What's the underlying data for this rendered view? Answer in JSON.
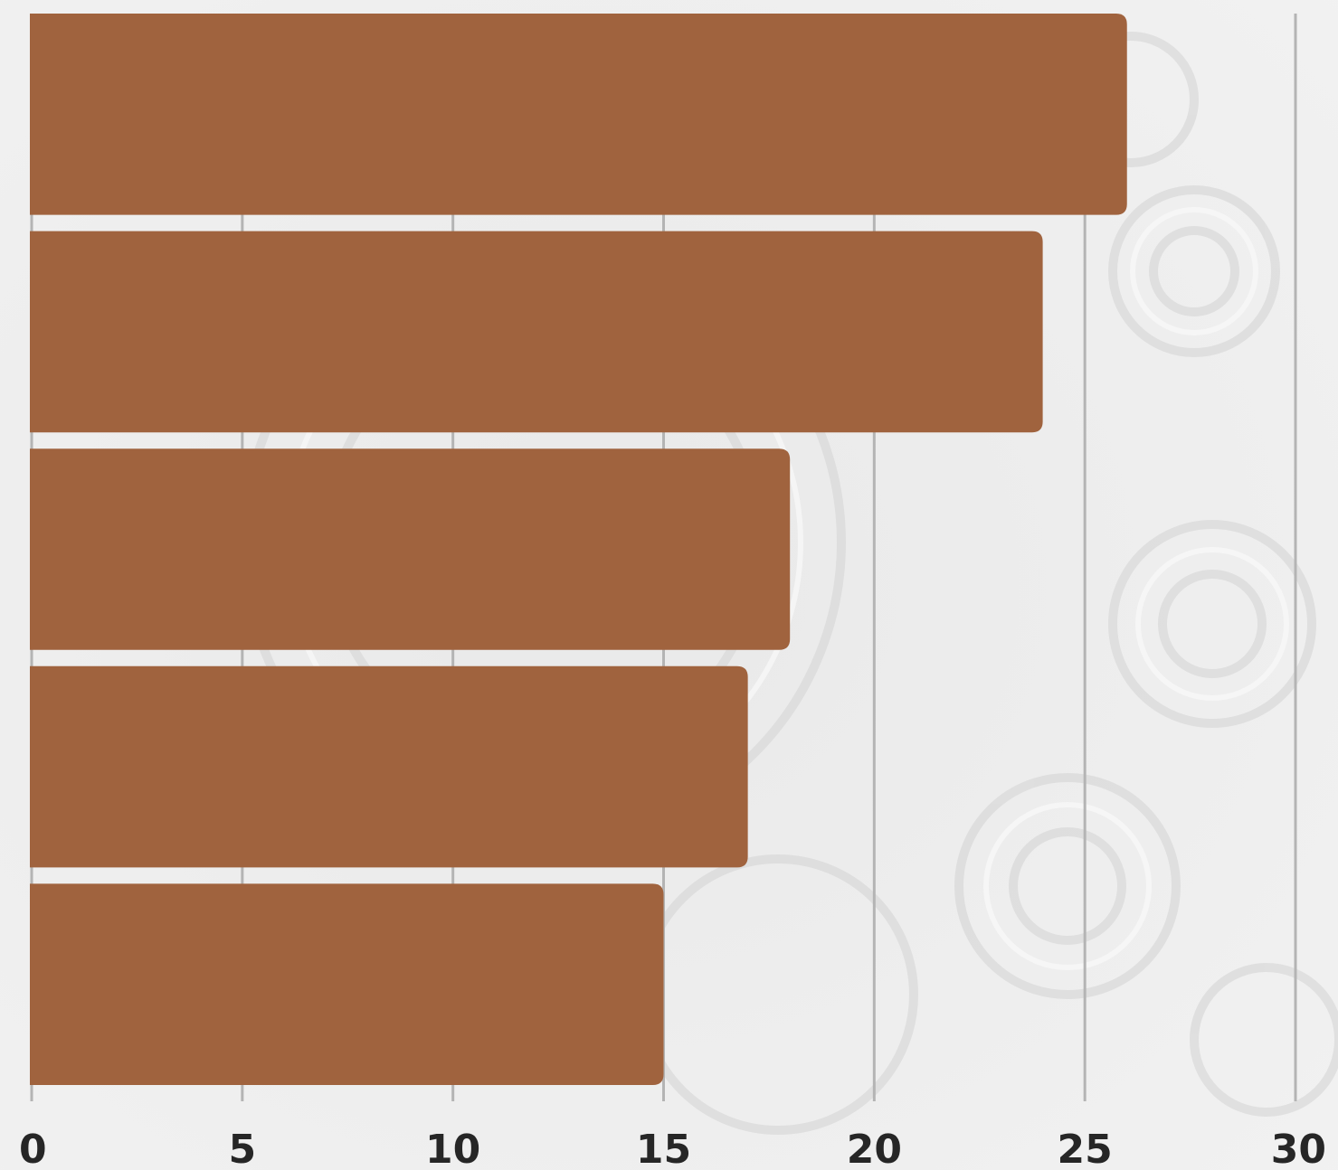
{
  "chart_data": {
    "type": "bar",
    "orientation": "horizontal",
    "values": [
      26,
      24,
      18,
      17,
      15
    ],
    "xlim": [
      0,
      30
    ],
    "xticks": [
      "0",
      "5",
      "10",
      "15",
      "20",
      "25",
      "30"
    ],
    "grid": true,
    "legend": "none",
    "bar_color": "#a0633e",
    "grid_color": "#b4b4b4",
    "tick_label_color": "#262626"
  }
}
